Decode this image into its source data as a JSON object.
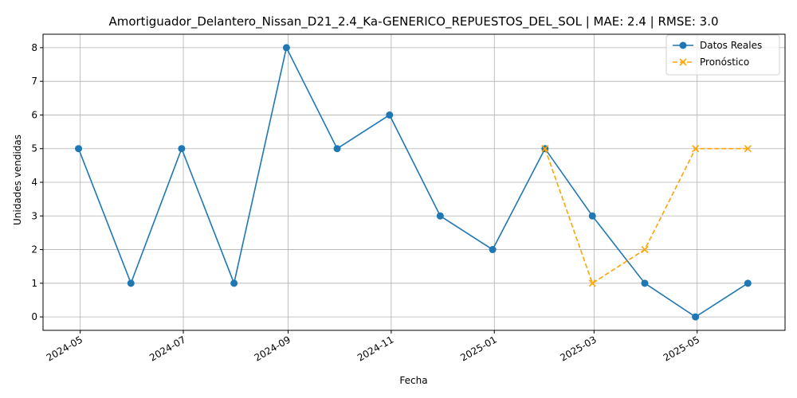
{
  "chart_data": {
    "type": "line",
    "title": "Amortiguador_Delantero_Nissan_D21_2.4_Ka-GENERICO_REPUESTOS_DEL_SOL | MAE: 2.4 | RMSE: 3.0",
    "xlabel": "Fecha",
    "ylabel": "Unidades vendidas",
    "ylim": [
      -0.4,
      8.4
    ],
    "xlim": [
      "2024-04-09",
      "2025-06-22"
    ],
    "grid": true,
    "legend_position": "top-right",
    "x_ticks": [
      "2024-05",
      "2024-07",
      "2024-09",
      "2024-11",
      "2025-01",
      "2025-03",
      "2025-05"
    ],
    "x_tick_dates": [
      "2024-05-01",
      "2024-07-01",
      "2024-09-01",
      "2024-11-01",
      "2025-01-01",
      "2025-03-01",
      "2025-05-01"
    ],
    "y_ticks": [
      0,
      1,
      2,
      3,
      4,
      5,
      6,
      7,
      8
    ],
    "series": [
      {
        "name": "Datos Reales",
        "color": "#1f77b4",
        "line_style": "solid",
        "marker": "circle",
        "x": [
          "2024-04-30",
          "2024-05-31",
          "2024-06-30",
          "2024-07-31",
          "2024-08-31",
          "2024-09-30",
          "2024-10-31",
          "2024-11-30",
          "2024-12-31",
          "2025-01-31",
          "2025-02-28",
          "2025-03-31",
          "2025-04-30",
          "2025-05-31"
        ],
        "values": [
          5,
          1,
          5,
          1,
          8,
          5,
          6,
          3,
          2,
          5,
          3,
          1,
          0,
          1
        ]
      },
      {
        "name": "Pronóstico",
        "color": "#ffa500",
        "line_style": "dashed",
        "marker": "x",
        "x": [
          "2025-01-31",
          "2025-02-28",
          "2025-03-31",
          "2025-04-30",
          "2025-05-31"
        ],
        "values": [
          5,
          1,
          2,
          5,
          5
        ]
      }
    ]
  }
}
